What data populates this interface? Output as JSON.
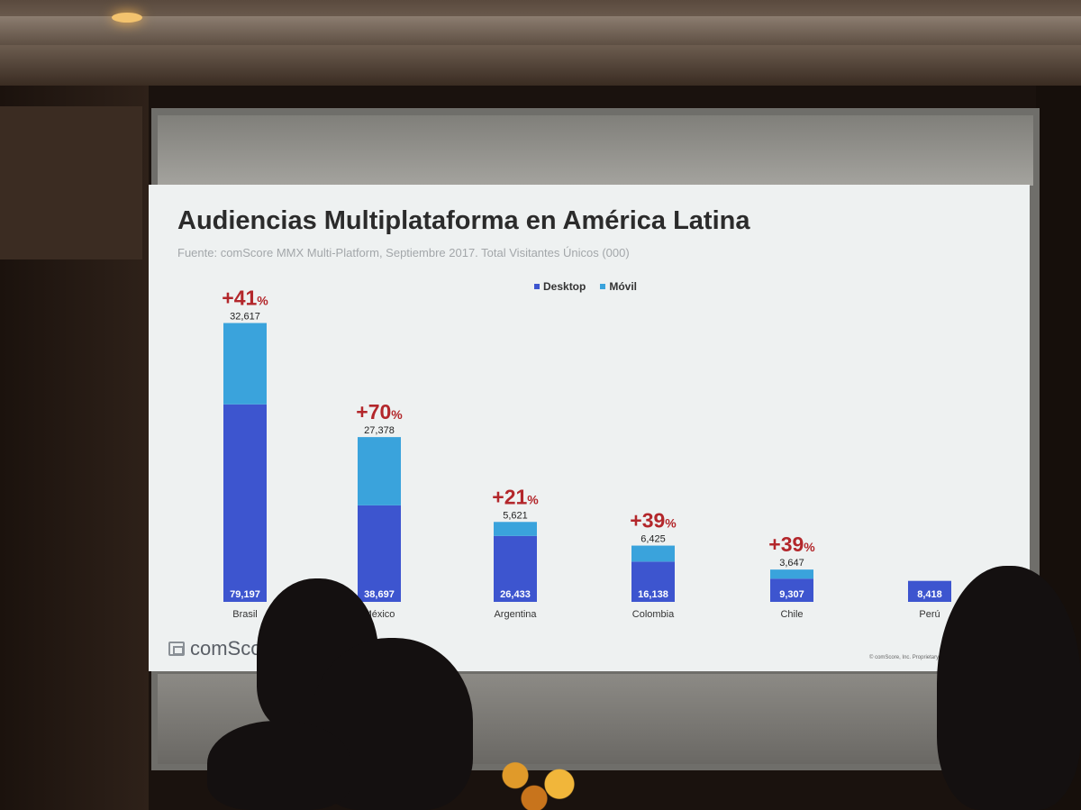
{
  "slide": {
    "title": "Audiencias Multiplataforma en América Latina",
    "subtitle": "Fuente: comScore MMX Multi-Platform, Septiembre 2017. Total Visitantes Únicos (000)",
    "brand": "comScore",
    "copyright": "© comScore, Inc. Proprietary."
  },
  "colors": {
    "desktop": "#3d55cf",
    "movil": "#3aa3dc",
    "growth": "#b3272b",
    "slide_bg": "#eef1f1"
  },
  "chart_data": {
    "type": "bar",
    "stacked": true,
    "title": "Audiencias Multiplataforma en América Latina",
    "subtitle": "Fuente: comScore MMX Multi-Platform, Septiembre 2017. Total Visitantes Únicos (000)",
    "legend_position": "top-center",
    "categories": [
      "Brasil",
      "México",
      "Argentina",
      "Colombia",
      "Chile",
      "Perú"
    ],
    "series": [
      {
        "name": "Desktop",
        "values": [
          79197,
          38697,
          26433,
          16138,
          9307,
          8418
        ]
      },
      {
        "name": "Móvil",
        "values": [
          32617,
          27378,
          5621,
          6425,
          3647,
          null
        ]
      }
    ],
    "value_labels": {
      "desktop": [
        "79,197",
        "38,697",
        "26,433",
        "16,138",
        "9,307",
        "8,418"
      ],
      "movil": [
        "32,617",
        "27,378",
        "5,621",
        "6,425",
        "3,647",
        ""
      ]
    },
    "growth_labels": [
      {
        "value": "+41",
        "unit": "%"
      },
      {
        "value": "+70",
        "unit": "%"
      },
      {
        "value": "+21",
        "unit": "%"
      },
      {
        "value": "+39",
        "unit": "%"
      },
      {
        "value": "+39",
        "unit": "%"
      },
      {
        "value": "",
        "unit": ""
      }
    ],
    "ylim": [
      0,
      112000
    ],
    "grid": false
  }
}
